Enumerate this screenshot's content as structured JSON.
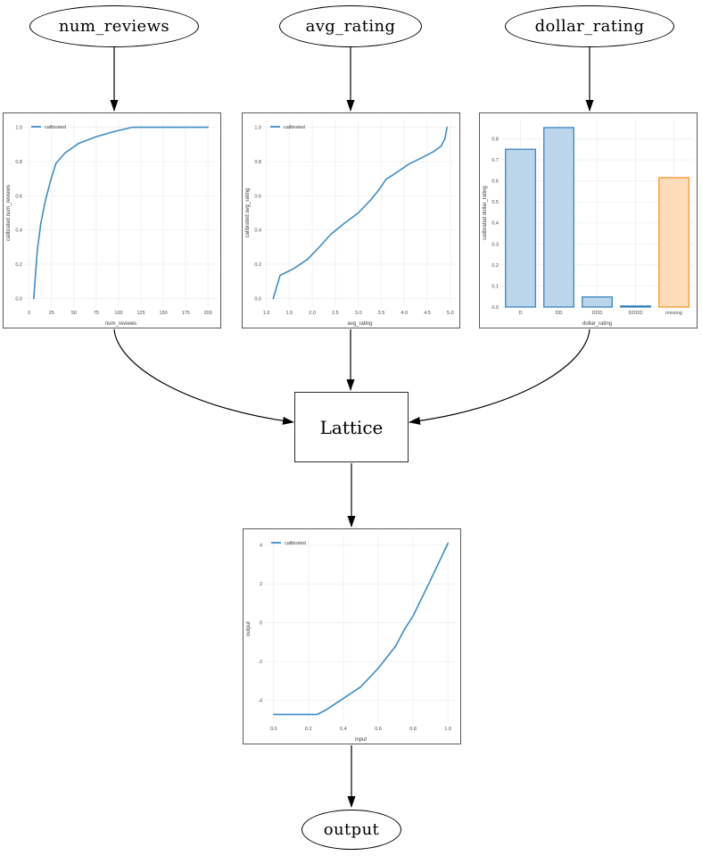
{
  "diagram": {
    "nodes": {
      "num_reviews": "num_reviews",
      "avg_rating": "avg_rating",
      "dollar_rating": "dollar_rating",
      "lattice": "Lattice",
      "output": "output"
    },
    "edges": [
      {
        "from": "num_reviews",
        "to": "num_reviews_calibrator"
      },
      {
        "from": "avg_rating",
        "to": "avg_rating_calibrator"
      },
      {
        "from": "dollar_rating",
        "to": "dollar_rating_calibrator"
      },
      {
        "from": "num_reviews_calibrator",
        "to": "Lattice"
      },
      {
        "from": "avg_rating_calibrator",
        "to": "Lattice"
      },
      {
        "from": "dollar_rating_calibrator",
        "to": "Lattice"
      },
      {
        "from": "Lattice",
        "to": "output_calibrator"
      },
      {
        "from": "output_calibrator",
        "to": "output"
      }
    ]
  },
  "colors": {
    "arrow": "#000000",
    "node_border": "#000000",
    "panel_border": "#5a5a5a",
    "grid": "#f1f1f1",
    "tick_text": "#4a4a4a",
    "label_text": "#3d3d3d",
    "line_blue": "#3f8cc6",
    "bar_blue_fill": "#bcd5ea",
    "bar_blue_edge": "#2e7ebc",
    "bar_orange_fill": "#fddcba",
    "bar_orange_edge": "#f5921e"
  },
  "chart_data": [
    {
      "type": "line",
      "xlabel": "num_reviews",
      "ylabel": "calibrated num_reviews",
      "legend": [
        "calibrated"
      ],
      "legend_position": "upper left",
      "grid": true,
      "xlim": [
        -4.75,
        209.75
      ],
      "ylim": [
        -0.05,
        1.05
      ],
      "xticks": [
        0,
        25,
        50,
        75,
        100,
        125,
        150,
        175,
        200
      ],
      "xtick_labels": [
        "0",
        "25",
        "50",
        "75",
        "100",
        "125",
        "150",
        "175",
        "200"
      ],
      "yticks": [
        0.0,
        0.2,
        0.4,
        0.6,
        0.8,
        1.0
      ],
      "ytick_labels": [
        "0.0",
        "0.2",
        "0.4",
        "0.6",
        "0.8",
        "1.0"
      ],
      "series": [
        {
          "name": "calibrated",
          "x": [
            5,
            9,
            13,
            18,
            24,
            30,
            40,
            55,
            75,
            95,
            115,
            200
          ],
          "y": [
            0.0,
            0.28,
            0.44,
            0.57,
            0.69,
            0.79,
            0.85,
            0.905,
            0.945,
            0.975,
            1.0,
            1.0
          ]
        }
      ]
    },
    {
      "type": "line",
      "xlabel": "avg_rating",
      "ylabel": "calibrated avg_rating",
      "legend": [
        "calibrated"
      ],
      "legend_position": "upper left",
      "grid": true,
      "xlim": [
        0.95,
        5.12
      ],
      "ylim": [
        -0.05,
        1.05
      ],
      "xticks": [
        1.0,
        1.5,
        2.0,
        2.5,
        3.0,
        3.5,
        4.0,
        4.5,
        5.0
      ],
      "xtick_labels": [
        "1.0",
        "1.5",
        "2.0",
        "2.5",
        "3.0",
        "3.5",
        "4.0",
        "4.5",
        "5.0"
      ],
      "yticks": [
        0.0,
        0.2,
        0.4,
        0.6,
        0.8,
        1.0
      ],
      "ytick_labels": [
        "0.0",
        "0.2",
        "0.4",
        "0.6",
        "0.8",
        "1.0"
      ],
      "series": [
        {
          "name": "calibrated",
          "x": [
            1.15,
            1.3,
            1.6,
            1.9,
            2.15,
            2.4,
            2.7,
            3.0,
            3.25,
            3.45,
            3.6,
            3.8,
            4.1,
            4.4,
            4.65,
            4.8,
            4.88,
            4.93
          ],
          "y": [
            0.0,
            0.135,
            0.175,
            0.23,
            0.3,
            0.375,
            0.44,
            0.5,
            0.57,
            0.635,
            0.695,
            0.73,
            0.785,
            0.825,
            0.86,
            0.89,
            0.93,
            1.0
          ]
        }
      ]
    },
    {
      "type": "bar",
      "xlabel": "dollar_rating",
      "ylabel": "calibrated dollar_rating",
      "grid": true,
      "categories": [
        "D",
        "DD",
        "DDD",
        "DDDD",
        "missing"
      ],
      "values": [
        0.75,
        0.853,
        0.048,
        0.005,
        0.615
      ],
      "bar_fills": [
        "#bcd5ea",
        "#bcd5ea",
        "#bcd5ea",
        "#bcd5ea",
        "#fddcba"
      ],
      "bar_edges": [
        "#2e7ebc",
        "#2e7ebc",
        "#2e7ebc",
        "#2e7ebc",
        "#f5921e"
      ],
      "ylim": [
        0,
        0.895
      ],
      "yticks": [
        0.0,
        0.1,
        0.2,
        0.3,
        0.4,
        0.5,
        0.6,
        0.7,
        0.8
      ],
      "ytick_labels": [
        "0.0",
        "0.1",
        "0.2",
        "0.3",
        "0.4",
        "0.5",
        "0.6",
        "0.7",
        "0.8"
      ]
    },
    {
      "type": "line",
      "xlabel": "input",
      "ylabel": "output",
      "legend": [
        "calibrated"
      ],
      "legend_position": "upper left",
      "grid": true,
      "xlim": [
        -0.05,
        1.05
      ],
      "ylim": [
        -5.17,
        4.54
      ],
      "xticks": [
        0.0,
        0.2,
        0.4,
        0.6,
        0.8,
        1.0
      ],
      "xtick_labels": [
        "0.0",
        "0.2",
        "0.4",
        "0.6",
        "0.8",
        "1.0"
      ],
      "yticks": [
        -4,
        -2,
        0,
        2,
        4
      ],
      "ytick_labels": [
        "-4",
        "-2",
        "0",
        "2",
        "4"
      ],
      "series": [
        {
          "name": "calibrated",
          "x": [
            0.0,
            0.25,
            0.3,
            0.4,
            0.5,
            0.6,
            0.7,
            0.75,
            0.8,
            0.9,
            1.0
          ],
          "y": [
            -4.73,
            -4.73,
            -4.5,
            -3.9,
            -3.3,
            -2.35,
            -1.2,
            -0.35,
            0.35,
            2.2,
            4.1
          ]
        }
      ]
    }
  ]
}
